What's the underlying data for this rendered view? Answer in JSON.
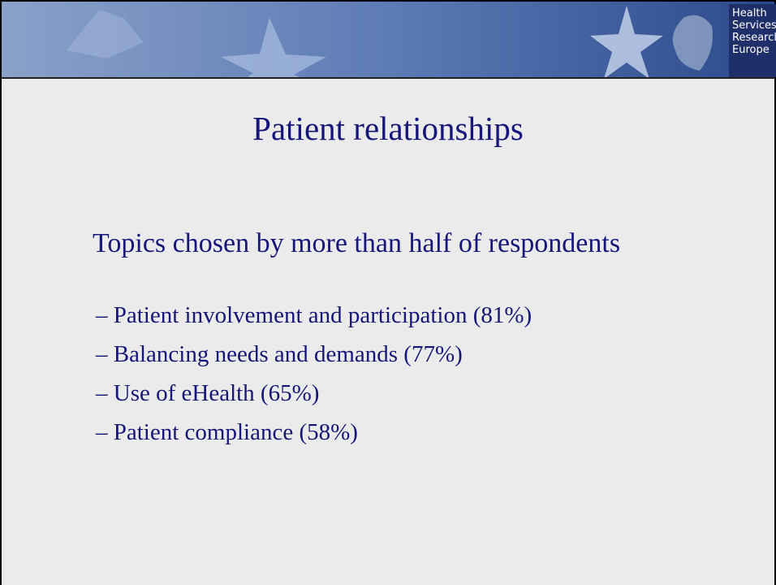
{
  "header": {
    "logo_lines": [
      "Health",
      "Services",
      "Research",
      "Europe"
    ]
  },
  "title": "Patient relationships",
  "intro": "Topics chosen by more than half of respondents",
  "bullets": [
    "– Patient involvement and participation (81%)",
    "– Balancing needs and demands (77%)",
    "– Use of eHealth (65%)",
    "– Patient compliance (58%)"
  ]
}
